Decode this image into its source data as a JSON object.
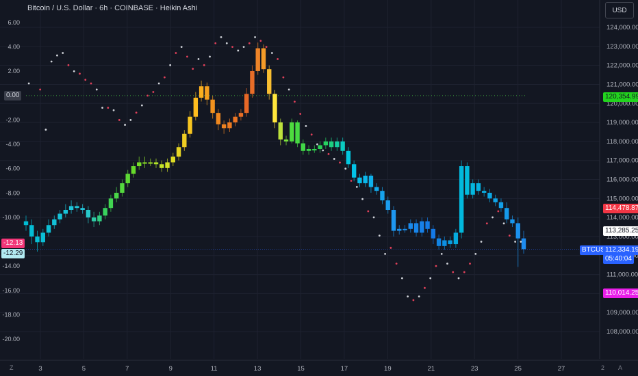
{
  "header": {
    "title": "Bitcoin / U.S. Dollar · 6h · COINBASE · Heikin Ashi",
    "currency_button": "USD"
  },
  "left_axis": {
    "ticks": [
      "6.00",
      "4.00",
      "2.00",
      "0.00",
      "-2.00",
      "-4.00",
      "-6.00",
      "-8.00",
      "-10.00",
      "-12.00",
      "-14.00",
      "-16.00",
      "-18.00",
      "-20.00"
    ],
    "zero_label": "0.00",
    "tag_a": "-12.13",
    "tag_b": "-12.29"
  },
  "right_axis": {
    "ticks": [
      "124,000.00",
      "123,000.00",
      "122,000.00",
      "121,000.00",
      "120,000.00",
      "119,000.00",
      "118,000.00",
      "117,000.00",
      "116,000.00",
      "115,000.00",
      "114,000.00",
      "113,000.00",
      "112,000.00",
      "111,000.00",
      "110,000.00",
      "109,000.00",
      "108,000.00"
    ],
    "tag_green": "120,354.99",
    "tag_red": "114,478.87",
    "tag_white": "113,285.25",
    "tag_symbol": "BTCUSD",
    "tag_price": "112,334.19",
    "tag_countdown": "05:40:04",
    "tag_magenta": "110,014.25"
  },
  "time_axis": {
    "labels": [
      "3",
      "5",
      "7",
      "9",
      "11",
      "13",
      "15",
      "17",
      "19",
      "21",
      "23",
      "25",
      "27"
    ],
    "left_icon": "Z",
    "right_label": "2",
    "auto_label": "A"
  },
  "colors": {
    "background": "#131722",
    "grid": "#1e2230",
    "green_tag": "#22d41e",
    "red_tag": "#f23645",
    "price_tag": "#2962ff",
    "magenta_tag": "#e91ee8"
  },
  "chart_data": {
    "type": "candlestick",
    "series_label": "Heikin Ashi",
    "interval": "6h",
    "ylim_price": [
      107500,
      124500
    ],
    "ylim_oscillator": [
      -20,
      6.5
    ],
    "candles": [
      {
        "o": 113800,
        "c": 113600,
        "h": 114100,
        "l": 113300
      },
      {
        "o": 113600,
        "c": 113000,
        "h": 113900,
        "l": 112600
      },
      {
        "o": 113000,
        "c": 112700,
        "h": 113300,
        "l": 112200
      },
      {
        "o": 112700,
        "c": 113200,
        "h": 113400,
        "l": 112500
      },
      {
        "o": 113200,
        "c": 113600,
        "h": 113900,
        "l": 113000
      },
      {
        "o": 113600,
        "c": 113900,
        "h": 114100,
        "l": 113400
      },
      {
        "o": 113900,
        "c": 114200,
        "h": 114400,
        "l": 113700
      },
      {
        "o": 114200,
        "c": 114400,
        "h": 114700,
        "l": 114000
      },
      {
        "o": 114400,
        "c": 114600,
        "h": 114900,
        "l": 114200
      },
      {
        "o": 114600,
        "c": 114500,
        "h": 114800,
        "l": 114300
      },
      {
        "o": 114500,
        "c": 114400,
        "h": 114700,
        "l": 114200
      },
      {
        "o": 114400,
        "c": 114000,
        "h": 114600,
        "l": 113700
      },
      {
        "o": 114000,
        "c": 113800,
        "h": 114300,
        "l": 113500
      },
      {
        "o": 113800,
        "c": 114100,
        "h": 114300,
        "l": 113600
      },
      {
        "o": 114100,
        "c": 114500,
        "h": 114700,
        "l": 113900
      },
      {
        "o": 114500,
        "c": 115000,
        "h": 115200,
        "l": 114300
      },
      {
        "o": 115000,
        "c": 115300,
        "h": 115600,
        "l": 114800
      },
      {
        "o": 115300,
        "c": 115800,
        "h": 116000,
        "l": 115100
      },
      {
        "o": 115800,
        "c": 116300,
        "h": 116500,
        "l": 115600
      },
      {
        "o": 116300,
        "c": 116700,
        "h": 116900,
        "l": 116100
      },
      {
        "o": 116700,
        "c": 116900,
        "h": 117200,
        "l": 116500
      },
      {
        "o": 116900,
        "c": 116900,
        "h": 117200,
        "l": 116600
      },
      {
        "o": 116900,
        "c": 116900,
        "h": 117100,
        "l": 116700
      },
      {
        "o": 116900,
        "c": 116800,
        "h": 117100,
        "l": 116600
      },
      {
        "o": 116800,
        "c": 116600,
        "h": 117000,
        "l": 116400
      },
      {
        "o": 116600,
        "c": 116900,
        "h": 117100,
        "l": 116400
      },
      {
        "o": 116900,
        "c": 117200,
        "h": 117400,
        "l": 116700
      },
      {
        "o": 117200,
        "c": 117700,
        "h": 117900,
        "l": 117000
      },
      {
        "o": 117700,
        "c": 118400,
        "h": 118600,
        "l": 117500
      },
      {
        "o": 118400,
        "c": 119300,
        "h": 119600,
        "l": 118200
      },
      {
        "o": 119300,
        "c": 120300,
        "h": 120600,
        "l": 119100
      },
      {
        "o": 120300,
        "c": 120900,
        "h": 121200,
        "l": 120100
      },
      {
        "o": 120900,
        "c": 120200,
        "h": 121100,
        "l": 119900
      },
      {
        "o": 120200,
        "c": 119500,
        "h": 120400,
        "l": 119200
      },
      {
        "o": 119500,
        "c": 118900,
        "h": 119700,
        "l": 118600
      },
      {
        "o": 118900,
        "c": 118700,
        "h": 119100,
        "l": 118400
      },
      {
        "o": 118700,
        "c": 119000,
        "h": 119200,
        "l": 118500
      },
      {
        "o": 119000,
        "c": 119300,
        "h": 119500,
        "l": 118800
      },
      {
        "o": 119300,
        "c": 119500,
        "h": 119700,
        "l": 119100
      },
      {
        "o": 119500,
        "c": 120500,
        "h": 120800,
        "l": 119300
      },
      {
        "o": 120500,
        "c": 121700,
        "h": 122000,
        "l": 120300
      },
      {
        "o": 121700,
        "c": 122900,
        "h": 123200,
        "l": 121500
      },
      {
        "o": 122900,
        "c": 121800,
        "h": 123100,
        "l": 121600
      },
      {
        "o": 121800,
        "c": 120500,
        "h": 122000,
        "l": 120200
      },
      {
        "o": 120500,
        "c": 119000,
        "h": 120700,
        "l": 118700
      },
      {
        "o": 119000,
        "c": 118100,
        "h": 119200,
        "l": 117800
      },
      {
        "o": 118100,
        "c": 118000,
        "h": 118300,
        "l": 117800
      },
      {
        "o": 118000,
        "c": 119000,
        "h": 119200,
        "l": 117900
      },
      {
        "o": 119000,
        "c": 117900,
        "h": 119100,
        "l": 117700
      },
      {
        "o": 117900,
        "c": 117500,
        "h": 118100,
        "l": 117300
      },
      {
        "o": 117500,
        "c": 117600,
        "h": 117800,
        "l": 117300
      },
      {
        "o": 117600,
        "c": 117600,
        "h": 117800,
        "l": 117400
      },
      {
        "o": 117600,
        "c": 117800,
        "h": 118000,
        "l": 117400
      },
      {
        "o": 117800,
        "c": 118000,
        "h": 118200,
        "l": 117600
      },
      {
        "o": 118000,
        "c": 117700,
        "h": 118200,
        "l": 117500
      },
      {
        "o": 117700,
        "c": 118000,
        "h": 118200,
        "l": 117500
      },
      {
        "o": 118000,
        "c": 117500,
        "h": 118200,
        "l": 117300
      },
      {
        "o": 117500,
        "c": 116800,
        "h": 117700,
        "l": 116600
      },
      {
        "o": 116800,
        "c": 116100,
        "h": 117000,
        "l": 115900
      },
      {
        "o": 116100,
        "c": 115800,
        "h": 116300,
        "l": 115600
      },
      {
        "o": 115800,
        "c": 116200,
        "h": 116400,
        "l": 115600
      },
      {
        "o": 116200,
        "c": 115600,
        "h": 116300,
        "l": 115300
      },
      {
        "o": 115600,
        "c": 115400,
        "h": 115800,
        "l": 115200
      },
      {
        "o": 115400,
        "c": 114900,
        "h": 115600,
        "l": 114700
      },
      {
        "o": 114900,
        "c": 114400,
        "h": 115100,
        "l": 114200
      },
      {
        "o": 114400,
        "c": 113300,
        "h": 114600,
        "l": 113000
      },
      {
        "o": 113300,
        "c": 113400,
        "h": 113600,
        "l": 113100
      },
      {
        "o": 113400,
        "c": 113400,
        "h": 113600,
        "l": 113200
      },
      {
        "o": 113400,
        "c": 113700,
        "h": 113900,
        "l": 113200
      },
      {
        "o": 113700,
        "c": 113200,
        "h": 113900,
        "l": 113000
      },
      {
        "o": 113200,
        "c": 113800,
        "h": 114000,
        "l": 113000
      },
      {
        "o": 113800,
        "c": 113400,
        "h": 114000,
        "l": 113200
      },
      {
        "o": 113400,
        "c": 112900,
        "h": 113600,
        "l": 112600
      },
      {
        "o": 112900,
        "c": 112500,
        "h": 113100,
        "l": 112300
      },
      {
        "o": 112500,
        "c": 112800,
        "h": 113000,
        "l": 112300
      },
      {
        "o": 112800,
        "c": 112600,
        "h": 113000,
        "l": 112400
      },
      {
        "o": 112600,
        "c": 113200,
        "h": 113400,
        "l": 112400
      },
      {
        "o": 113200,
        "c": 116700,
        "h": 117000,
        "l": 112900
      },
      {
        "o": 116700,
        "c": 115200,
        "h": 116900,
        "l": 115000
      },
      {
        "o": 115200,
        "c": 115800,
        "h": 116000,
        "l": 115000
      },
      {
        "o": 115800,
        "c": 115400,
        "h": 116000,
        "l": 115200
      },
      {
        "o": 115400,
        "c": 115300,
        "h": 115600,
        "l": 115100
      },
      {
        "o": 115300,
        "c": 115000,
        "h": 115500,
        "l": 114800
      },
      {
        "o": 115000,
        "c": 114800,
        "h": 115200,
        "l": 114600
      },
      {
        "o": 114800,
        "c": 114500,
        "h": 115000,
        "l": 114300
      },
      {
        "o": 114500,
        "c": 113900,
        "h": 114800,
        "l": 113700
      },
      {
        "o": 113900,
        "c": 113700,
        "h": 114100,
        "l": 113500
      },
      {
        "o": 113700,
        "c": 112900,
        "h": 114000,
        "l": 111400
      },
      {
        "o": 112900,
        "c": 112334,
        "h": 113300,
        "l": 112100
      }
    ],
    "dots": [
      {
        "i": 0,
        "v": 1.0,
        "c": "w"
      },
      {
        "i": 2,
        "v": 0.5,
        "c": "r"
      },
      {
        "i": 3,
        "v": -2.8,
        "c": "w"
      },
      {
        "i": 4,
        "v": 2.8,
        "c": "w"
      },
      {
        "i": 5,
        "v": 3.3,
        "c": "w"
      },
      {
        "i": 6,
        "v": 3.5,
        "c": "w"
      },
      {
        "i": 7,
        "v": 2.5,
        "c": "r"
      },
      {
        "i": 8,
        "v": 2.0,
        "c": "w"
      },
      {
        "i": 9,
        "v": 1.8,
        "c": "r"
      },
      {
        "i": 10,
        "v": 1.3,
        "c": "r"
      },
      {
        "i": 11,
        "v": 1.0,
        "c": "r"
      },
      {
        "i": 12,
        "v": 0.5,
        "c": "w"
      },
      {
        "i": 13,
        "v": -1.0,
        "c": "w"
      },
      {
        "i": 14,
        "v": -1.0,
        "c": "r"
      },
      {
        "i": 15,
        "v": -1.2,
        "c": "w"
      },
      {
        "i": 16,
        "v": -2.0,
        "c": "r"
      },
      {
        "i": 17,
        "v": -2.4,
        "c": "w"
      },
      {
        "i": 18,
        "v": -2.0,
        "c": "w"
      },
      {
        "i": 19,
        "v": -1.4,
        "c": "r"
      },
      {
        "i": 20,
        "v": -0.8,
        "c": "w"
      },
      {
        "i": 21,
        "v": 0.0,
        "c": "r"
      },
      {
        "i": 22,
        "v": 0.3,
        "c": "r"
      },
      {
        "i": 23,
        "v": 1.0,
        "c": "w"
      },
      {
        "i": 24,
        "v": 1.5,
        "c": "r"
      },
      {
        "i": 25,
        "v": 2.5,
        "c": "w"
      },
      {
        "i": 26,
        "v": 3.5,
        "c": "r"
      },
      {
        "i": 27,
        "v": 4.0,
        "c": "w"
      },
      {
        "i": 28,
        "v": 3.2,
        "c": "r"
      },
      {
        "i": 29,
        "v": 2.2,
        "c": "r"
      },
      {
        "i": 30,
        "v": 3.0,
        "c": "w"
      },
      {
        "i": 31,
        "v": 2.5,
        "c": "r"
      },
      {
        "i": 32,
        "v": 3.2,
        "c": "w"
      },
      {
        "i": 33,
        "v": 4.3,
        "c": "r"
      },
      {
        "i": 34,
        "v": 4.8,
        "c": "w"
      },
      {
        "i": 35,
        "v": 4.3,
        "c": "w"
      },
      {
        "i": 36,
        "v": 4.0,
        "c": "r"
      },
      {
        "i": 37,
        "v": 3.7,
        "c": "w"
      },
      {
        "i": 38,
        "v": 4.0,
        "c": "w"
      },
      {
        "i": 39,
        "v": 4.3,
        "c": "r"
      },
      {
        "i": 40,
        "v": 4.8,
        "c": "w"
      },
      {
        "i": 41,
        "v": 4.5,
        "c": "r"
      },
      {
        "i": 42,
        "v": 4.0,
        "c": "r"
      },
      {
        "i": 43,
        "v": 3.5,
        "c": "w"
      },
      {
        "i": 44,
        "v": 3.0,
        "c": "r"
      },
      {
        "i": 45,
        "v": 1.5,
        "c": "r"
      },
      {
        "i": 46,
        "v": 0.5,
        "c": "w"
      },
      {
        "i": 47,
        "v": -0.5,
        "c": "r"
      },
      {
        "i": 48,
        "v": -1.5,
        "c": "r"
      },
      {
        "i": 49,
        "v": -2.5,
        "c": "w"
      },
      {
        "i": 50,
        "v": -3.2,
        "c": "r"
      },
      {
        "i": 51,
        "v": -4.0,
        "c": "w"
      },
      {
        "i": 52,
        "v": -4.5,
        "c": "w"
      },
      {
        "i": 53,
        "v": -4.8,
        "c": "r"
      },
      {
        "i": 54,
        "v": -5.2,
        "c": "w"
      },
      {
        "i": 55,
        "v": -5.5,
        "c": "r"
      },
      {
        "i": 56,
        "v": -6.0,
        "c": "w"
      },
      {
        "i": 57,
        "v": -7.0,
        "c": "r"
      },
      {
        "i": 58,
        "v": -7.5,
        "c": "w"
      },
      {
        "i": 59,
        "v": -8.5,
        "c": "w"
      },
      {
        "i": 60,
        "v": -9.5,
        "c": "r"
      },
      {
        "i": 61,
        "v": -10.0,
        "c": "w"
      },
      {
        "i": 62,
        "v": -11.5,
        "c": "w"
      },
      {
        "i": 63,
        "v": -13.0,
        "c": "w"
      },
      {
        "i": 64,
        "v": -12.5,
        "c": "r"
      },
      {
        "i": 65,
        "v": -13.8,
        "c": "r"
      },
      {
        "i": 66,
        "v": -15.0,
        "c": "w"
      },
      {
        "i": 67,
        "v": -16.5,
        "c": "w"
      },
      {
        "i": 68,
        "v": -16.8,
        "c": "r"
      },
      {
        "i": 69,
        "v": -16.5,
        "c": "w"
      },
      {
        "i": 70,
        "v": -15.8,
        "c": "r"
      },
      {
        "i": 71,
        "v": -15.0,
        "c": "w"
      },
      {
        "i": 72,
        "v": -14.0,
        "c": "r"
      },
      {
        "i": 73,
        "v": -13.0,
        "c": "w"
      },
      {
        "i": 74,
        "v": -13.8,
        "c": "w"
      },
      {
        "i": 75,
        "v": -14.5,
        "c": "r"
      },
      {
        "i": 76,
        "v": -15.0,
        "c": "w"
      },
      {
        "i": 77,
        "v": -14.5,
        "c": "r"
      },
      {
        "i": 78,
        "v": -13.8,
        "c": "r"
      },
      {
        "i": 79,
        "v": -13.0,
        "c": "w"
      },
      {
        "i": 80,
        "v": -12.0,
        "c": "w"
      },
      {
        "i": 81,
        "v": -10.5,
        "c": "r"
      },
      {
        "i": 82,
        "v": -10.0,
        "c": "w"
      },
      {
        "i": 83,
        "v": -9.5,
        "c": "r"
      },
      {
        "i": 84,
        "v": -10.5,
        "c": "w"
      },
      {
        "i": 85,
        "v": -11.5,
        "c": "r"
      },
      {
        "i": 86,
        "v": -12.0,
        "c": "w"
      },
      {
        "i": 87,
        "v": -12.0,
        "c": "w"
      }
    ]
  }
}
